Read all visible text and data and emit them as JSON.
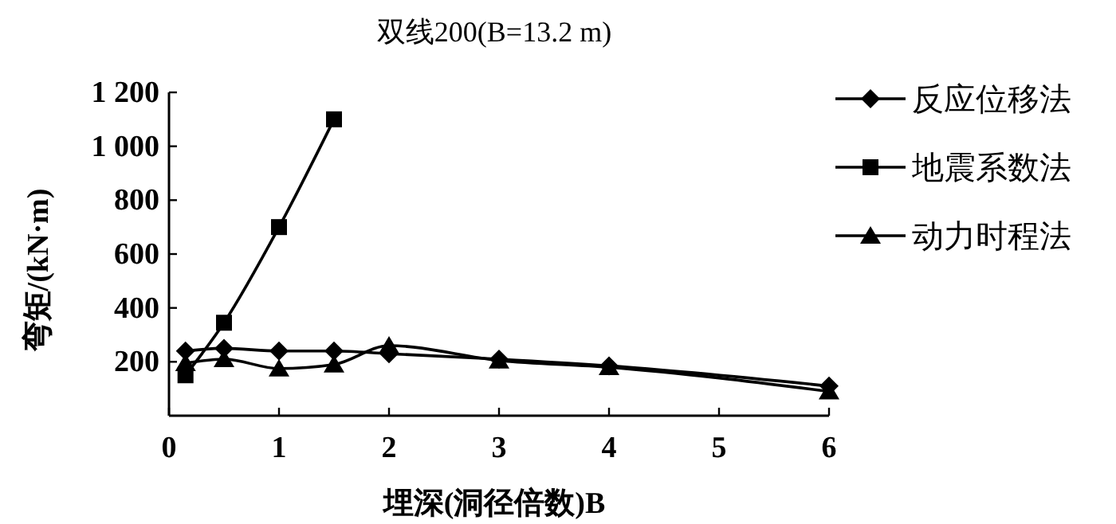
{
  "chart_data": {
    "type": "line",
    "title": "双线200(B=13.2 m)",
    "xlabel": "埋深(洞径倍数)B",
    "ylabel": "弯矩/(kN·m)",
    "xlim": [
      0,
      6
    ],
    "xticks": [
      0,
      1,
      2,
      3,
      4,
      5,
      6
    ],
    "ylim": [
      0,
      1200
    ],
    "yticks": [
      200,
      400,
      600,
      800,
      {
        "value": 1000,
        "label": "1 000"
      },
      {
        "value": 1200,
        "label": "1 200"
      }
    ],
    "grid": false,
    "legend": "right",
    "series": [
      {
        "name": "反应位移法",
        "color": "#000000",
        "marker": "diamond",
        "x": [
          0.15,
          0.5,
          1,
          1.5,
          2,
          3,
          4,
          6
        ],
        "values": [
          240,
          250,
          240,
          240,
          230,
          210,
          185,
          110
        ]
      },
      {
        "name": "地震系数法",
        "color": "#000000",
        "marker": "square",
        "x": [
          0.15,
          0.5,
          1,
          1.5
        ],
        "values": [
          150,
          345,
          700,
          1100
        ]
      },
      {
        "name": "动力时程法",
        "color": "#000000",
        "marker": "triangle",
        "x": [
          0.15,
          0.5,
          1,
          1.5,
          2,
          3,
          4,
          6
        ],
        "values": [
          195,
          210,
          175,
          190,
          260,
          205,
          180,
          90
        ]
      }
    ]
  }
}
